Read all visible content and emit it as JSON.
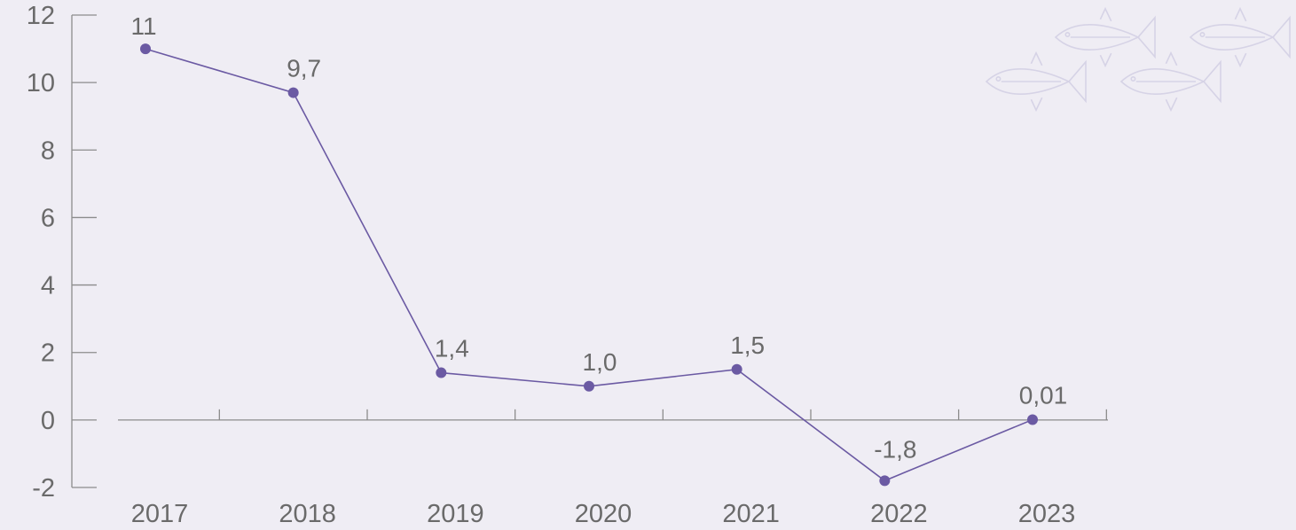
{
  "chart_data": {
    "type": "line",
    "categories": [
      "2017",
      "2018",
      "2019",
      "2020",
      "2021",
      "2022",
      "2023"
    ],
    "values": [
      11,
      9.7,
      1.4,
      1.0,
      1.5,
      -1.8,
      0.01
    ],
    "data_labels": [
      "11",
      "9,7",
      "1,4",
      "1,0",
      "1,5",
      "-1,8",
      "0,01"
    ],
    "y_ticks": [
      12,
      10,
      8,
      6,
      4,
      2,
      0,
      -2
    ],
    "ylim": [
      -2,
      12
    ],
    "grid": false,
    "line_color": "#6b5aa3",
    "marker_color": "#6b5aa3",
    "decoration_icon": "fish-icon"
  }
}
